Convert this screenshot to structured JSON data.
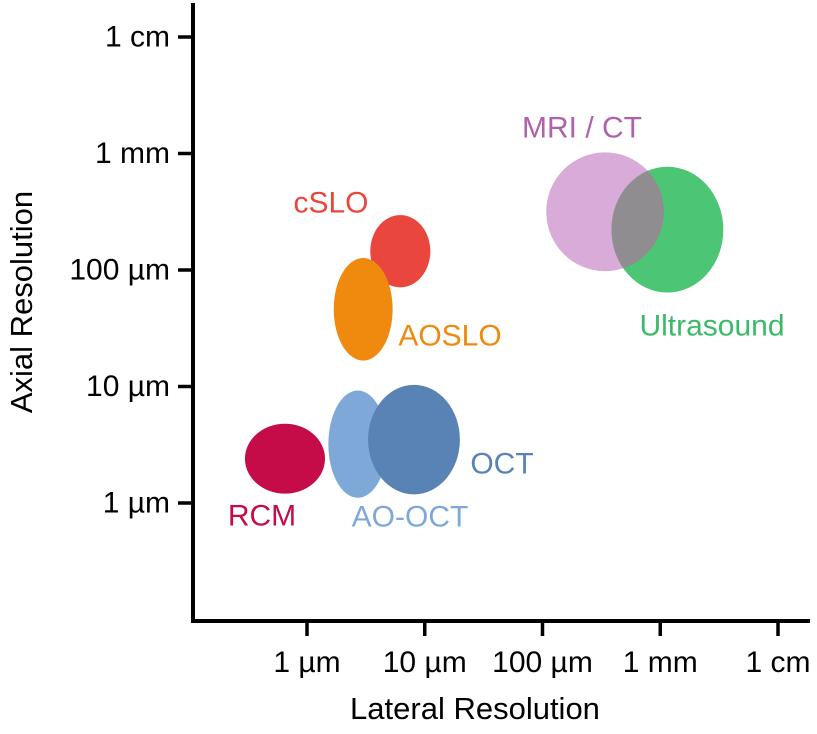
{
  "chart_data": {
    "type": "scatter",
    "subtype": "bubble",
    "title": "",
    "xlabel": "Lateral Resolution",
    "ylabel": "Axial Resolution",
    "x_scale": "log",
    "y_scale": "log",
    "background": "#ffffff",
    "axis_color": "#000000",
    "grid": false,
    "x_ticks": [
      {
        "label": "1 µm",
        "um": 1
      },
      {
        "label": "10 µm",
        "um": 10
      },
      {
        "label": "100 µm",
        "um": 100
      },
      {
        "label": "1 mm",
        "um": 1000
      },
      {
        "label": "1 cm",
        "um": 10000
      }
    ],
    "y_ticks": [
      {
        "label": "1 cm",
        "um": 10000
      },
      {
        "label": "1 mm",
        "um": 1000
      },
      {
        "label": "100 µm",
        "um": 100
      },
      {
        "label": "10 µm",
        "um": 10
      },
      {
        "label": "1 µm",
        "um": 1
      }
    ],
    "x_range_um": [
      0.1,
      20000
    ],
    "y_range_um": [
      0.1,
      20000
    ],
    "bubbles": [
      {
        "id": "rcm",
        "label": "RCM",
        "color": "#c60c48",
        "label_color": "#c60c48",
        "x_um": 0.65,
        "y_um": 2.4,
        "rx_decades": 0.34,
        "ry_decades": 0.3
      },
      {
        "id": "ao-oct",
        "label": "AO-OCT",
        "color": "#7da8d8",
        "label_color": "#7da8d8",
        "x_um": 2.7,
        "y_um": 3.2,
        "rx_decades": 0.25,
        "ry_decades": 0.46
      },
      {
        "id": "oct",
        "label": "OCT",
        "color": "#5a83b5",
        "label_color": "#5a83b5",
        "x_um": 8.1,
        "y_um": 3.5,
        "rx_decades": 0.39,
        "ry_decades": 0.47
      },
      {
        "id": "cslo",
        "label": "cSLO",
        "color": "#e9463e",
        "label_color": "#e9463e",
        "x_um": 6.2,
        "y_um": 145,
        "rx_decades": 0.255,
        "ry_decades": 0.31
      },
      {
        "id": "aoslo",
        "label": "AOSLO",
        "color": "#ef8a0e",
        "label_color": "#ef8a0e",
        "x_um": 3.0,
        "y_um": 46,
        "rx_decades": 0.25,
        "ry_decades": 0.44
      },
      {
        "id": "mri-ct",
        "label": "MRI / CT",
        "color": "#d9abd8",
        "label_color": "#b060ae",
        "x_um": 340,
        "y_um": 316,
        "rx_decades": 0.5,
        "ry_decades": 0.51
      },
      {
        "id": "ultrasound",
        "label": "Ultrasound",
        "color": "#4cc575",
        "label_color": "#3cb96a",
        "x_um": 1150,
        "y_um": 222,
        "rx_decades": 0.475,
        "ry_decades": 0.54
      }
    ],
    "overlap": {
      "between": [
        "mri-ct",
        "ultrasound"
      ],
      "color": "#8f8d90"
    }
  }
}
